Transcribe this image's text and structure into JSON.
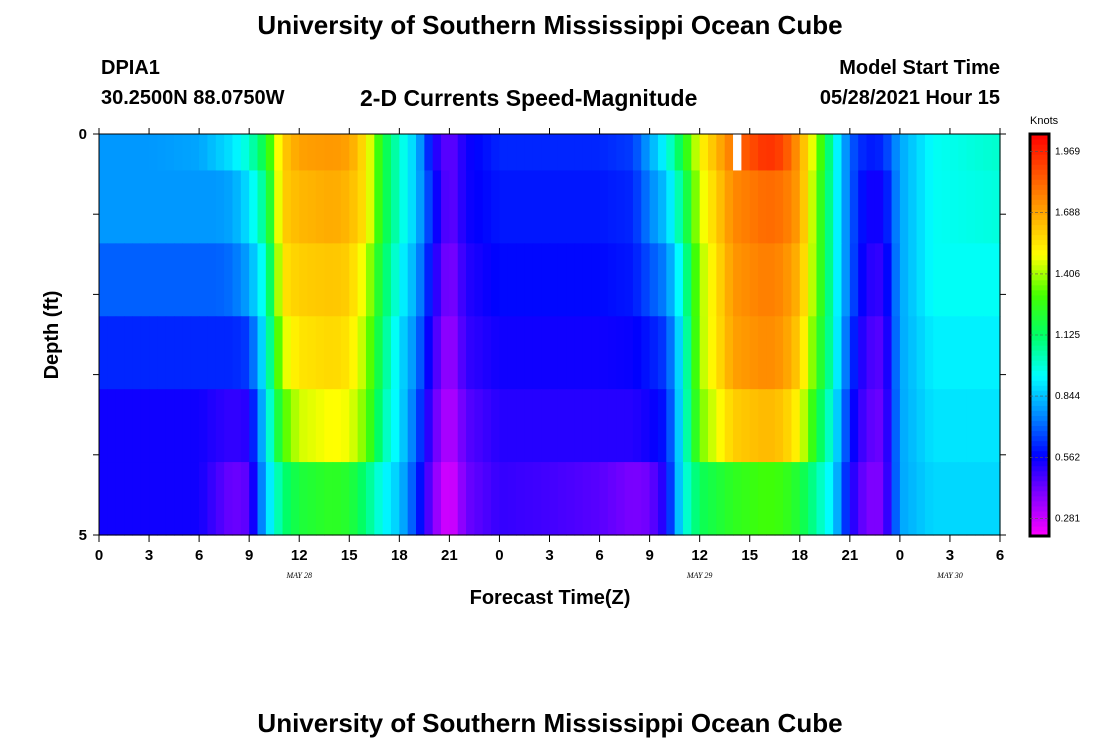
{
  "header": {
    "title": "University of Southern Mississippi Ocean Cube",
    "station_id": "DPIA1",
    "coordinates": "30.2500N  88.0750W",
    "subtitle": "2-D Currents Speed-Magnitude",
    "model_start_label": "Model Start Time",
    "model_start_value": "05/28/2021 Hour 15"
  },
  "footer": {
    "title": "University of Southern Mississippi Ocean Cube"
  },
  "chart_data": {
    "type": "heatmap",
    "title": "2-D Currents Speed-Magnitude",
    "xlabel": "Forecast Time(Z)",
    "ylabel": "Depth (ft)",
    "x_hours_from_start": [
      0,
      54
    ],
    "x_tick_labels": [
      "0",
      "3",
      "6",
      "9",
      "12",
      "15",
      "18",
      "21",
      "0",
      "3",
      "6",
      "9",
      "12",
      "15",
      "18",
      "21",
      "0",
      "3",
      "6"
    ],
    "date_labels": [
      {
        "text": "MAY 28",
        "at_hour": 12
      },
      {
        "text": "MAY 29",
        "at_hour": 36
      },
      {
        "text": "MAY 30",
        "at_hour": 51
      }
    ],
    "y_tick_labels": [
      "0",
      "5"
    ],
    "ylim": [
      0,
      5
    ],
    "colorbar": {
      "label": "Knots",
      "ticks": [
        1.969,
        1.688,
        1.406,
        1.125,
        0.844,
        0.562,
        0.281
      ],
      "tick_labels": [
        "1.969",
        "1.688",
        "1.406",
        "1.125",
        "0.844",
        "0.562",
        "0.281"
      ],
      "range": [
        0.2,
        2.05
      ],
      "colors": [
        "#ff00ff",
        "#8800ff",
        "#0000ff",
        "#0088ff",
        "#00ffff",
        "#00ff66",
        "#44ff00",
        "#ffff00",
        "#ffaa00",
        "#ff5500",
        "#ff0000"
      ]
    },
    "depth_layers": 5,
    "time_keypoints": [
      0,
      3,
      6,
      7,
      8,
      9,
      10,
      11,
      12,
      14,
      15,
      16,
      17,
      18,
      19,
      20,
      21,
      22,
      24,
      27,
      30,
      32,
      33,
      34,
      35,
      36,
      38,
      40,
      41,
      42,
      43,
      44,
      45,
      46,
      47,
      48,
      50,
      54
    ],
    "speed_knots": [
      [
        0.78,
        0.78,
        0.8,
        0.85,
        0.9,
        1.0,
        1.2,
        1.6,
        1.7,
        1.72,
        1.7,
        1.55,
        1.2,
        1.0,
        0.85,
        0.55,
        0.42,
        0.55,
        0.62,
        0.62,
        0.62,
        0.65,
        0.8,
        0.95,
        1.2,
        1.5,
        1.8,
        1.95,
        1.9,
        1.7,
        1.4,
        1.0,
        0.7,
        0.6,
        0.62,
        0.8,
        0.95,
        1.0
      ],
      [
        0.78,
        0.78,
        0.78,
        0.78,
        0.8,
        0.9,
        1.1,
        1.6,
        1.65,
        1.68,
        1.65,
        1.55,
        1.2,
        1.0,
        0.85,
        0.6,
        0.42,
        0.55,
        0.6,
        0.6,
        0.6,
        0.62,
        0.75,
        0.85,
        1.1,
        1.45,
        1.75,
        1.82,
        1.8,
        1.7,
        1.35,
        1.0,
        0.7,
        0.55,
        0.55,
        0.8,
        0.95,
        0.98
      ],
      [
        0.7,
        0.7,
        0.7,
        0.7,
        0.72,
        0.8,
        1.0,
        1.55,
        1.6,
        1.62,
        1.6,
        1.45,
        1.15,
        0.95,
        0.8,
        0.55,
        0.38,
        0.52,
        0.58,
        0.58,
        0.58,
        0.6,
        0.68,
        0.75,
        1.0,
        1.4,
        1.72,
        1.78,
        1.75,
        1.65,
        1.35,
        1.0,
        0.7,
        0.52,
        0.5,
        0.8,
        0.95,
        0.95
      ],
      [
        0.62,
        0.62,
        0.62,
        0.62,
        0.62,
        0.65,
        0.95,
        1.45,
        1.55,
        1.58,
        1.55,
        1.4,
        1.1,
        0.9,
        0.75,
        0.5,
        0.34,
        0.5,
        0.55,
        0.55,
        0.55,
        0.56,
        0.6,
        0.65,
        0.95,
        1.4,
        1.7,
        1.75,
        1.72,
        1.6,
        1.3,
        1.0,
        0.65,
        0.48,
        0.45,
        0.8,
        0.92,
        0.92
      ],
      [
        0.55,
        0.55,
        0.55,
        0.52,
        0.5,
        0.52,
        0.9,
        1.3,
        1.45,
        1.5,
        1.48,
        1.35,
        1.05,
        0.9,
        0.7,
        0.45,
        0.3,
        0.45,
        0.52,
        0.52,
        0.52,
        0.52,
        0.55,
        0.6,
        0.95,
        1.35,
        1.6,
        1.65,
        1.62,
        1.5,
        1.2,
        0.95,
        0.6,
        0.45,
        0.42,
        0.8,
        0.9,
        0.9
      ],
      [
        0.55,
        0.55,
        0.55,
        0.48,
        0.42,
        0.45,
        0.85,
        1.1,
        1.2,
        1.25,
        1.22,
        1.1,
        0.95,
        0.85,
        0.65,
        0.4,
        0.24,
        0.42,
        0.5,
        0.48,
        0.45,
        0.4,
        0.42,
        0.55,
        0.95,
        1.15,
        1.25,
        1.3,
        1.28,
        1.2,
        1.05,
        0.9,
        0.55,
        0.4,
        0.4,
        0.8,
        0.88,
        0.88
      ]
    ],
    "missing_values": [
      {
        "hour_from": 38.0,
        "hour_to": 38.5,
        "depth_row": 0
      }
    ]
  }
}
